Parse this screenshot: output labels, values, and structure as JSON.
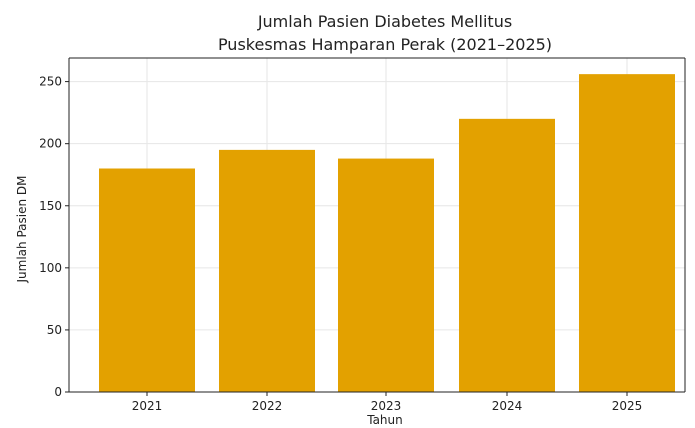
{
  "chart_data": {
    "type": "bar",
    "title_lines": [
      "Jumlah Pasien Diabetes Mellitus",
      "Puskesmas Hamparan Perak (2021–2025)"
    ],
    "categories": [
      "2021",
      "2022",
      "2023",
      "2024",
      "2025"
    ],
    "values": [
      180,
      195,
      188,
      220,
      256
    ],
    "xlabel": "Tahun",
    "ylabel": "Jumlah Pasien DM",
    "ylim": [
      0,
      269
    ],
    "yticks": [
      0,
      50,
      100,
      150,
      200,
      250
    ],
    "grid": true,
    "bar_color": "#E3A100"
  }
}
